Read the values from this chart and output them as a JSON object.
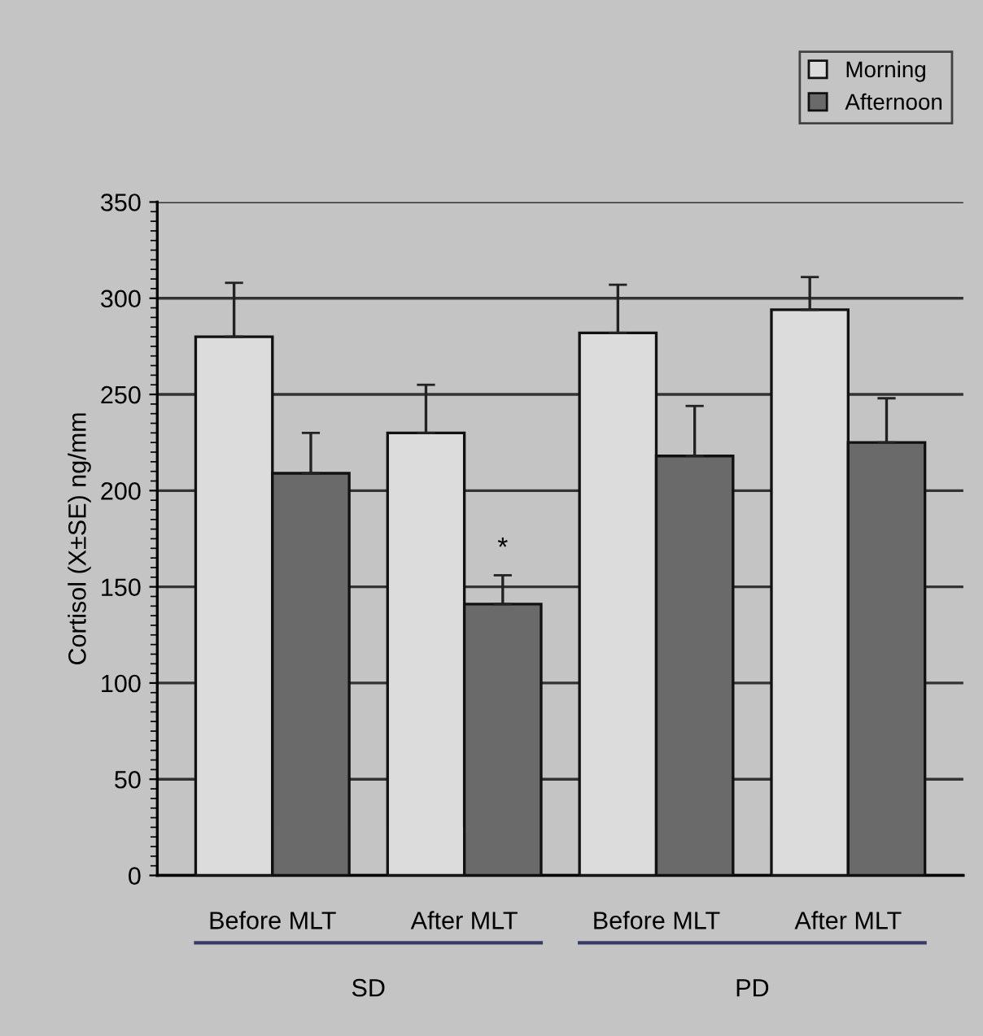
{
  "chart_data": {
    "type": "bar",
    "ylabel": "Cortisol (X±SE) ng/mm",
    "categories": [
      "Before MLT",
      "After MLT",
      "Before MLT",
      "After MLT"
    ],
    "series": [
      {
        "name": "Morning",
        "color": "#dcdcdc",
        "values": [
          280,
          230,
          282,
          294
        ],
        "errors": [
          28,
          25,
          25,
          17
        ]
      },
      {
        "name": "Afternoon",
        "color": "#6a6a6a",
        "values": [
          209,
          141,
          218,
          225
        ],
        "errors": [
          21,
          15,
          26,
          23
        ],
        "value_labels": [
          null,
          "*",
          null,
          null
        ]
      }
    ],
    "annotations": [
      "SD",
      "PD"
    ],
    "ylim": [
      0,
      350
    ],
    "yticks": [
      0,
      50,
      100,
      150,
      200,
      250,
      300,
      350
    ],
    "grid": "y",
    "legend": "top right"
  }
}
